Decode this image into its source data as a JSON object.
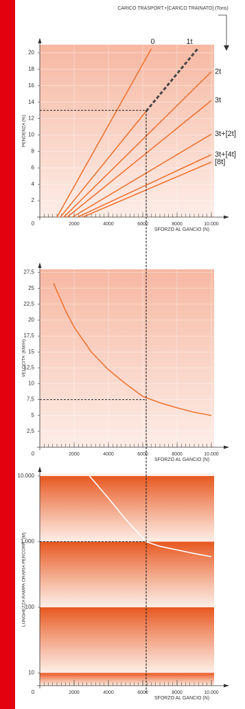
{
  "chart_data": [
    {
      "type": "line",
      "annotation": "CARICO TRASPORT.+[CARICO TRAINATO] (Tons)",
      "ylabel": "PENDENZA (%)",
      "xlabel": "SFORZO AL GANCIO (N)",
      "origin_label": "0",
      "xlim": [
        0,
        10000
      ],
      "ylim": [
        0,
        21
      ],
      "xticks": [
        2000,
        4000,
        6000,
        8000,
        {
          "value": 10000,
          "label": "10.000"
        }
      ],
      "yticks": [
        2,
        4,
        6,
        8,
        10,
        12,
        14,
        16,
        18,
        20
      ],
      "xminor_step": 250,
      "grid": true,
      "log": false,
      "background": "#f6b8a2",
      "guide": {
        "x": 6200,
        "y": 13
      },
      "series": [
        {
          "name": "0",
          "color": "#ee7330",
          "x": [
            1000,
            6500
          ],
          "values": [
            0,
            20.5
          ]
        },
        {
          "name": "1t",
          "color": "#ee7330",
          "x": [
            1200,
            6200,
            9200
          ],
          "values": [
            0,
            12.9,
            20.5
          ],
          "dashed_segments": [
            false,
            true
          ]
        },
        {
          "name": "2t",
          "color": "#ee7330",
          "x": [
            1400,
            10000
          ],
          "values": [
            0,
            17.7
          ]
        },
        {
          "name": "3t",
          "color": "#ee7330",
          "x": [
            1600,
            10000
          ],
          "values": [
            0,
            14.2
          ]
        },
        {
          "name": "3t+[2t]",
          "color": "#ee7330",
          "x": [
            1900,
            10000
          ],
          "values": [
            0,
            10.1
          ]
        },
        {
          "name": "3t+[4t]",
          "color": "#ee7330",
          "x": [
            2200,
            10000
          ],
          "values": [
            0,
            7.6
          ]
        },
        {
          "name": "[8t]",
          "color": "#ee7330",
          "x": [
            2500,
            10000
          ],
          "values": [
            0,
            6.7
          ]
        }
      ]
    },
    {
      "type": "line",
      "ylabel": "VELOCITA' (KM/H)",
      "xlabel": "SFORZO AL GANCIO (N)",
      "origin_label": "0",
      "xlim": [
        0,
        10000
      ],
      "ylim": [
        0,
        28
      ],
      "xticks": [
        2000,
        4000,
        6000,
        8000,
        {
          "value": 10000,
          "label": "10.000"
        }
      ],
      "yticks": [
        {
          "value": 2.5,
          "label": "2,5"
        },
        5,
        {
          "value": 7.5,
          "label": "7,5"
        },
        10,
        {
          "value": 12.5,
          "label": "12,5"
        },
        15,
        {
          "value": 17.5,
          "label": "17,5"
        },
        20,
        {
          "value": 22.5,
          "label": "22,5"
        },
        25,
        {
          "value": 27.5,
          "label": "27,5"
        }
      ],
      "xminor_step": 250,
      "grid": true,
      "log": false,
      "background": "#f6b8a2",
      "guide": {
        "x": 6200,
        "y": 7.5
      },
      "series": [
        {
          "color": "#ee7330",
          "x": [
            800,
            1500,
            2000,
            3000,
            4000,
            5000,
            6000,
            7000,
            8000,
            9000,
            10000
          ],
          "values": [
            25.8,
            21.5,
            18.9,
            15,
            12.2,
            10,
            8,
            7,
            6.2,
            5.5,
            5
          ]
        }
      ]
    },
    {
      "type": "line",
      "ylabel": "LUNGHEZZA RAMPA ORARIA PERCORR. (M)",
      "xlabel": "SFORZO AL GANCIO (N)",
      "origin_label": "0",
      "xlim": [
        0,
        10000
      ],
      "ylim": [
        6.4,
        11000
      ],
      "xticks": [
        2000,
        4000,
        6000,
        8000,
        {
          "value": 10000,
          "label": "10.000"
        }
      ],
      "yticks": [
        10,
        100,
        {
          "value": 1000,
          "label": "1.000"
        },
        {
          "value": 10000,
          "label": "10.000"
        }
      ],
      "xminor_step": 250,
      "grid": false,
      "log": true,
      "background": "#e8571f",
      "guide": {
        "x": 6200,
        "y": 1000
      },
      "series": [
        {
          "color": "#ffffff",
          "x": [
            2900,
            4000,
            5000,
            6200,
            7000,
            8000,
            9000,
            10000
          ],
          "values": [
            10000,
            4600,
            2200,
            1000,
            850,
            750,
            660,
            590
          ]
        }
      ]
    }
  ]
}
